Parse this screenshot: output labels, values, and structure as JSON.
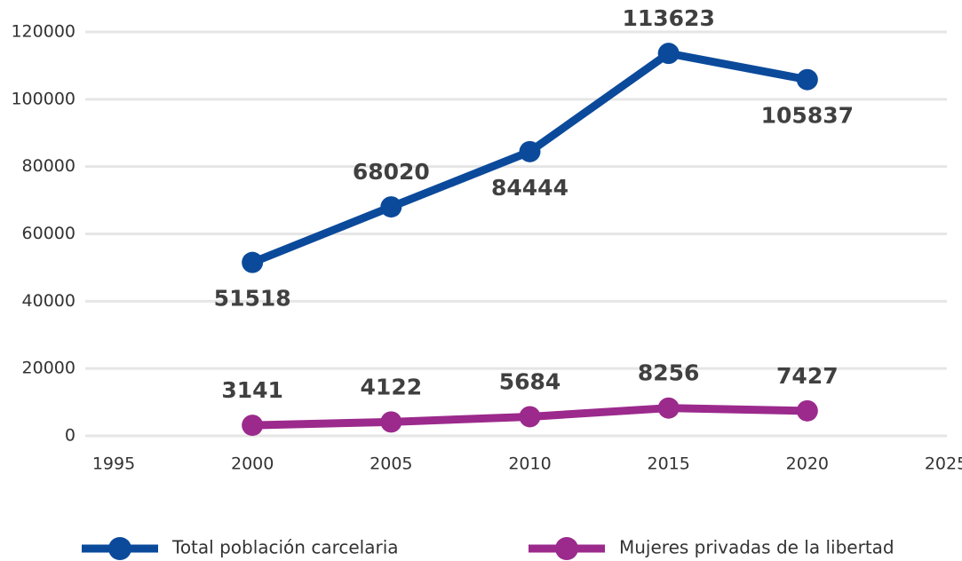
{
  "chart_data": {
    "type": "line",
    "x": [
      2000,
      2005,
      2010,
      2015,
      2020
    ],
    "series": [
      {
        "name": "Total población carcelaria",
        "color": "#0b4a9b",
        "values": [
          51518,
          68020,
          84444,
          113623,
          105837
        ]
      },
      {
        "name": "Mujeres privadas de la libertad",
        "color": "#9b2a8c",
        "values": [
          3141,
          4122,
          5684,
          8256,
          7427
        ]
      }
    ],
    "xlim": [
      1995,
      2025
    ],
    "xticks": [
      1995,
      2000,
      2005,
      2010,
      2015,
      2020,
      2025
    ],
    "ylim": [
      0,
      120000
    ],
    "yticks": [
      0,
      20000,
      40000,
      60000,
      80000,
      100000,
      120000
    ],
    "grid": true,
    "legend": "bottom"
  }
}
